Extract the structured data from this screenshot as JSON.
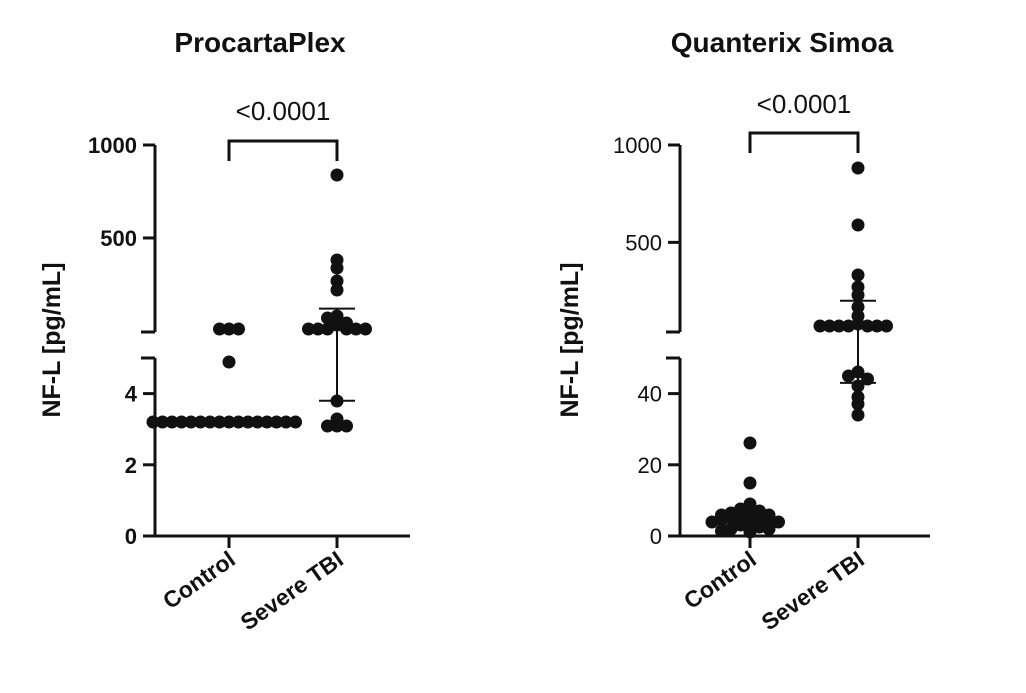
{
  "chart_data": [
    {
      "type": "scatter",
      "title": "ProcartaPlex",
      "ylabel": "NF-L [pg/mL]",
      "categories": [
        "Control",
        "Severe TBI"
      ],
      "y_axis_broken": true,
      "lower_segment": {
        "ylim": [
          0,
          5
        ],
        "ticks": [
          "0",
          "2",
          "4"
        ],
        "tick_values": [
          0,
          2,
          4
        ]
      },
      "upper_segment": {
        "ylim": [
          5,
          1000
        ],
        "ticks": [
          "500",
          "1000"
        ],
        "tick_values": [
          500,
          1000
        ]
      },
      "significance": {
        "label": "<0.0001",
        "between": [
          "Control",
          "Severe TBI"
        ]
      },
      "series": [
        {
          "name": "Control",
          "values": [
            3.2,
            3.2,
            3.2,
            3.2,
            3.2,
            3.2,
            3.2,
            3.2,
            3.2,
            3.2,
            3.2,
            3.2,
            3.2,
            3.2,
            3.2,
            3.2,
            4.9,
            10,
            10,
            10
          ],
          "median": 3.2
        },
        {
          "name": "Severe TBI",
          "values": [
            840,
            380,
            340,
            270,
            220,
            80,
            70,
            40,
            30,
            10,
            10,
            10,
            10,
            10,
            10,
            3.8,
            3.3,
            3.1,
            3.1,
            3.1
          ],
          "median": 10,
          "iqr": [
            3.8,
            120
          ]
        }
      ]
    },
    {
      "type": "scatter",
      "title": "Quanterix Simoa",
      "ylabel": "NF-L [pg/mL]",
      "categories": [
        "Control",
        "Severe TBI"
      ],
      "y_axis_broken": true,
      "lower_segment": {
        "ylim": [
          0,
          50
        ],
        "ticks": [
          "0",
          "20",
          "40"
        ],
        "tick_values": [
          0,
          20,
          40
        ]
      },
      "upper_segment": {
        "ylim": [
          50,
          1000
        ],
        "ticks": [
          "500",
          "1000"
        ],
        "tick_values": [
          500,
          1000
        ]
      },
      "significance": {
        "label": "<0.0001",
        "between": [
          "Control",
          "Severe TBI"
        ]
      },
      "series": [
        {
          "name": "Control",
          "values": [
            26,
            15,
            9,
            8,
            7.5,
            7,
            6.5,
            6,
            6,
            5.5,
            5,
            5,
            5,
            4.5,
            4.5,
            4,
            4,
            3.5,
            3,
            2.5,
            2,
            2,
            1.5,
            1
          ],
          "median": 5,
          "iqr": [
            3.5,
            7
          ]
        },
        {
          "name": "Severe TBI",
          "values": [
            880,
            590,
            330,
            270,
            230,
            170,
            120,
            80,
            70,
            70,
            70,
            70,
            70,
            70,
            70,
            46,
            45,
            44,
            42,
            39,
            37,
            34
          ],
          "median": 70,
          "iqr": [
            43,
            200
          ]
        }
      ]
    }
  ]
}
